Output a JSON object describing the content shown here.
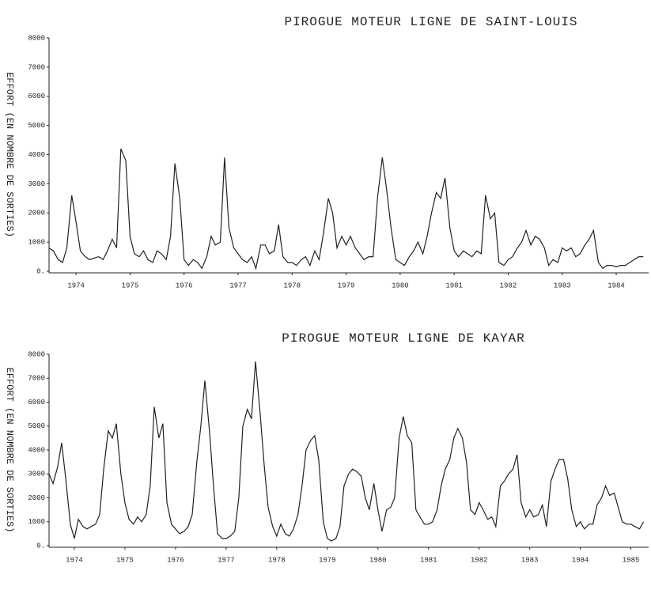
{
  "chart_data": [
    {
      "type": "line",
      "title": "PIROGUE MOTEUR LIGNE DE SAINT-LOUIS",
      "y_label": "EFFORT (EN NOMBRE DE SORTIES)",
      "xlim": [
        1973.5,
        1984.6
      ],
      "xticks": [
        1974,
        1975,
        1976,
        1977,
        1978,
        1979,
        1980,
        1981,
        1982,
        1983,
        1984
      ],
      "ylim": [
        0,
        8000
      ],
      "yticks": [
        {
          "value": 0,
          "label": "0."
        },
        1000,
        2000,
        3000,
        4000,
        5000,
        6000,
        7000,
        8000
      ],
      "series": [
        {
          "color": "#222222",
          "x": [
            1973.5,
            1973.58,
            1973.67,
            1973.75,
            1973.83,
            1973.92,
            1974,
            1974.08,
            1974.17,
            1974.25,
            1974.33,
            1974.42,
            1974.5,
            1974.58,
            1974.67,
            1974.75,
            1974.83,
            1974.92,
            1975,
            1975.08,
            1975.17,
            1975.25,
            1975.33,
            1975.42,
            1975.5,
            1975.58,
            1975.67,
            1975.75,
            1975.83,
            1975.92,
            1976,
            1976.08,
            1976.17,
            1976.25,
            1976.33,
            1976.42,
            1976.5,
            1976.58,
            1976.67,
            1976.75,
            1976.83,
            1976.92,
            1977,
            1977.08,
            1977.17,
            1977.25,
            1977.33,
            1977.42,
            1977.5,
            1977.58,
            1977.67,
            1977.75,
            1977.83,
            1977.92,
            1978,
            1978.08,
            1978.17,
            1978.25,
            1978.33,
            1978.42,
            1978.5,
            1978.58,
            1978.67,
            1978.75,
            1978.83,
            1978.92,
            1979,
            1979.08,
            1979.17,
            1979.25,
            1979.33,
            1979.42,
            1979.5,
            1979.58,
            1979.67,
            1979.75,
            1979.83,
            1979.92,
            1980,
            1980.08,
            1980.17,
            1980.25,
            1980.33,
            1980.42,
            1980.5,
            1980.58,
            1980.67,
            1980.75,
            1980.83,
            1980.92,
            1981,
            1981.08,
            1981.17,
            1981.25,
            1981.33,
            1981.42,
            1981.5,
            1981.58,
            1981.67,
            1981.75,
            1981.83,
            1981.92,
            1982,
            1982.08,
            1982.17,
            1982.25,
            1982.33,
            1982.42,
            1982.5,
            1982.58,
            1982.67,
            1982.75,
            1982.83,
            1982.92,
            1983,
            1983.08,
            1983.17,
            1983.25,
            1983.33,
            1983.42,
            1983.5,
            1983.58,
            1983.67,
            1983.75,
            1983.83,
            1983.92,
            1984,
            1984.08,
            1984.17,
            1984.25,
            1984.33,
            1984.42,
            1984.5
          ],
          "values": [
            800,
            700,
            400,
            300,
            800,
            2600,
            1700,
            700,
            500,
            400,
            450,
            500,
            400,
            700,
            1100,
            800,
            4200,
            3800,
            1200,
            600,
            500,
            700,
            400,
            300,
            700,
            600,
            400,
            1200,
            3700,
            2500,
            400,
            200,
            400,
            300,
            100,
            500,
            1200,
            900,
            1000,
            3900,
            1500,
            800,
            600,
            400,
            300,
            500,
            100,
            900,
            900,
            600,
            700,
            1600,
            500,
            300,
            300,
            200,
            400,
            500,
            200,
            700,
            400,
            1300,
            2500,
            2000,
            800,
            1200,
            900,
            1200,
            800,
            600,
            400,
            500,
            500,
            2500,
            3900,
            2800,
            1500,
            400,
            300,
            200,
            500,
            700,
            1000,
            600,
            1200,
            2000,
            2700,
            2500,
            3200,
            1500,
            700,
            500,
            700,
            600,
            500,
            700,
            600,
            2600,
            1800,
            2000,
            300,
            200,
            400,
            500,
            800,
            1000,
            1400,
            900,
            1200,
            1100,
            800,
            200,
            400,
            300,
            800,
            700,
            800,
            500,
            600,
            900,
            1100,
            1400,
            300,
            100,
            200,
            200,
            150,
            200,
            200,
            300,
            400,
            500,
            500
          ]
        }
      ]
    },
    {
      "type": "line",
      "title": "PIROGUE MOTEUR LIGNE DE KAYAR",
      "y_label": "EFFORT (EN NOMBRE DE SORTIES)",
      "xlim": [
        1973.5,
        1985.35
      ],
      "xticks": [
        1974,
        1975,
        1976,
        1977,
        1978,
        1979,
        1980,
        1981,
        1982,
        1983,
        1984,
        1985
      ],
      "ylim": [
        0,
        8000
      ],
      "yticks": [
        {
          "value": 0,
          "label": "0."
        },
        1000,
        2000,
        3000,
        4000,
        5000,
        6000,
        7000,
        8000
      ],
      "series": [
        {
          "color": "#222222",
          "x": [
            1973.5,
            1973.58,
            1973.67,
            1973.75,
            1973.83,
            1973.92,
            1974,
            1974.08,
            1974.17,
            1974.25,
            1974.33,
            1974.42,
            1974.5,
            1974.58,
            1974.67,
            1974.75,
            1974.83,
            1974.92,
            1975,
            1975.08,
            1975.17,
            1975.25,
            1975.33,
            1975.42,
            1975.5,
            1975.58,
            1975.67,
            1975.75,
            1975.83,
            1975.92,
            1976,
            1976.08,
            1976.17,
            1976.25,
            1976.33,
            1976.42,
            1976.5,
            1976.58,
            1976.67,
            1976.75,
            1976.83,
            1976.92,
            1977,
            1977.08,
            1977.17,
            1977.25,
            1977.33,
            1977.42,
            1977.5,
            1977.58,
            1977.67,
            1977.75,
            1977.83,
            1977.92,
            1978,
            1978.08,
            1978.17,
            1978.25,
            1978.33,
            1978.42,
            1978.5,
            1978.58,
            1978.67,
            1978.75,
            1978.83,
            1978.92,
            1979,
            1979.08,
            1979.17,
            1979.25,
            1979.33,
            1979.42,
            1979.5,
            1979.58,
            1979.67,
            1979.75,
            1979.83,
            1979.92,
            1980,
            1980.08,
            1980.17,
            1980.25,
            1980.33,
            1980.42,
            1980.5,
            1980.58,
            1980.67,
            1980.75,
            1980.83,
            1980.92,
            1981,
            1981.08,
            1981.17,
            1981.25,
            1981.33,
            1981.42,
            1981.5,
            1981.58,
            1981.67,
            1981.75,
            1981.83,
            1981.92,
            1982,
            1982.08,
            1982.17,
            1982.25,
            1982.33,
            1982.42,
            1982.5,
            1982.58,
            1982.67,
            1982.75,
            1982.83,
            1982.92,
            1983,
            1983.08,
            1983.17,
            1983.25,
            1983.33,
            1983.42,
            1983.5,
            1983.58,
            1983.67,
            1983.75,
            1983.83,
            1983.92,
            1984,
            1984.08,
            1984.17,
            1984.25,
            1984.33,
            1984.42,
            1984.5,
            1984.58,
            1984.67,
            1984.75,
            1984.83,
            1984.92,
            1985,
            1985.08,
            1985.17,
            1985.25
          ],
          "values": [
            3000,
            2600,
            3300,
            4300,
            2800,
            900,
            300,
            1100,
            800,
            700,
            800,
            900,
            1300,
            3200,
            4800,
            4500,
            5100,
            3000,
            1800,
            1100,
            900,
            1200,
            1000,
            1300,
            2500,
            5800,
            4500,
            5100,
            1800,
            900,
            700,
            500,
            600,
            800,
            1300,
            3500,
            5000,
            6900,
            4800,
            2500,
            500,
            300,
            300,
            400,
            600,
            2000,
            5000,
            5700,
            5300,
            7700,
            5600,
            3400,
            1600,
            800,
            400,
            900,
            500,
            400,
            700,
            1300,
            2500,
            4000,
            4400,
            4600,
            3600,
            1000,
            300,
            200,
            300,
            800,
            2500,
            3000,
            3200,
            3100,
            2900,
            2000,
            1500,
            2600,
            1500,
            600,
            1500,
            1600,
            2000,
            4500,
            5400,
            4600,
            4300,
            1500,
            1200,
            900,
            900,
            1000,
            1500,
            2500,
            3200,
            3600,
            4500,
            4900,
            4500,
            3500,
            1500,
            1300,
            1800,
            1500,
            1100,
            1200,
            800,
            2500,
            2700,
            3000,
            3200,
            3800,
            1800,
            1200,
            1500,
            1200,
            1300,
            1700,
            800,
            2700,
            3200,
            3600,
            3600,
            2800,
            1500,
            800,
            1000,
            700,
            900,
            900,
            1700,
            2000,
            2500,
            2100,
            2200,
            1600,
            1000,
            900,
            900,
            800,
            700,
            1000
          ]
        }
      ]
    }
  ]
}
